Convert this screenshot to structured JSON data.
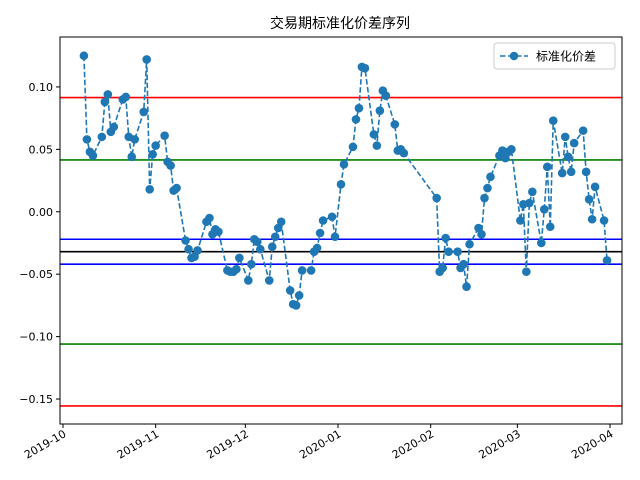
{
  "chart_data": {
    "type": "line",
    "title": "交易期标准化价差序列",
    "xlabel": "",
    "ylabel": "",
    "x_ticks": [
      "2019-10",
      "2019-11",
      "2019-12",
      "2020-01",
      "2020-02",
      "2020-03",
      "2020-04"
    ],
    "x_range": [
      "2019-09-30",
      "2020-04-05"
    ],
    "y_ticks": [
      0.1,
      0.05,
      0.0,
      -0.05,
      -0.1,
      -0.15
    ],
    "y_tick_labels": [
      "0.10",
      "0.05",
      "0.00",
      "−0.05",
      "−0.10",
      "−0.15"
    ],
    "ylim": [
      -0.17,
      0.14
    ],
    "grid": false,
    "legend_position": "top-right",
    "series": [
      {
        "name": "标准化价差",
        "color": "#1f77b4",
        "style": "dashed-with-circle-markers",
        "points": [
          [
            "2019-10-08",
            0.125
          ],
          [
            "2019-10-09",
            0.058
          ],
          [
            "2019-10-10",
            0.048
          ],
          [
            "2019-10-11",
            0.045
          ],
          [
            "2019-10-14",
            0.06
          ],
          [
            "2019-10-15",
            0.088
          ],
          [
            "2019-10-16",
            0.094
          ],
          [
            "2019-10-17",
            0.064
          ],
          [
            "2019-10-18",
            0.068
          ],
          [
            "2019-10-21",
            0.09
          ],
          [
            "2019-10-22",
            0.092
          ],
          [
            "2019-10-23",
            0.06
          ],
          [
            "2019-10-24",
            0.044
          ],
          [
            "2019-10-25",
            0.058
          ],
          [
            "2019-10-28",
            0.08
          ],
          [
            "2019-10-29",
            0.122
          ],
          [
            "2019-10-30",
            0.018
          ],
          [
            "2019-10-31",
            0.046
          ],
          [
            "2019-11-01",
            0.053
          ],
          [
            "2019-11-04",
            0.061
          ],
          [
            "2019-11-05",
            0.04
          ],
          [
            "2019-11-06",
            0.037
          ],
          [
            "2019-11-07",
            0.017
          ],
          [
            "2019-11-08",
            0.019
          ],
          [
            "2019-11-11",
            -0.023
          ],
          [
            "2019-11-12",
            -0.03
          ],
          [
            "2019-11-13",
            -0.037
          ],
          [
            "2019-11-14",
            -0.036
          ],
          [
            "2019-11-15",
            -0.031
          ],
          [
            "2019-11-18",
            -0.008
          ],
          [
            "2019-11-19",
            -0.005
          ],
          [
            "2019-11-20",
            -0.018
          ],
          [
            "2019-11-21",
            -0.014
          ],
          [
            "2019-11-22",
            -0.016
          ],
          [
            "2019-11-25",
            -0.047
          ],
          [
            "2019-11-26",
            -0.048
          ],
          [
            "2019-11-27",
            -0.048
          ],
          [
            "2019-11-28",
            -0.046
          ],
          [
            "2019-11-29",
            -0.037
          ],
          [
            "2019-12-02",
            -0.055
          ],
          [
            "2019-12-03",
            -0.042
          ],
          [
            "2019-12-04",
            -0.022
          ],
          [
            "2019-12-05",
            -0.024
          ],
          [
            "2019-12-06",
            -0.03
          ],
          [
            "2019-12-09",
            -0.055
          ],
          [
            "2019-12-10",
            -0.028
          ],
          [
            "2019-12-11",
            -0.02
          ],
          [
            "2019-12-12",
            -0.013
          ],
          [
            "2019-12-13",
            -0.008
          ],
          [
            "2019-12-16",
            -0.063
          ],
          [
            "2019-12-17",
            -0.074
          ],
          [
            "2019-12-18",
            -0.075
          ],
          [
            "2019-12-19",
            -0.067
          ],
          [
            "2019-12-20",
            -0.047
          ],
          [
            "2019-12-23",
            -0.047
          ],
          [
            "2019-12-24",
            -0.032
          ],
          [
            "2019-12-25",
            -0.029
          ],
          [
            "2019-12-26",
            -0.017
          ],
          [
            "2019-12-27",
            -0.007
          ],
          [
            "2019-12-30",
            -0.004
          ],
          [
            "2019-12-31",
            -0.02
          ],
          [
            "2020-01-02",
            0.022
          ],
          [
            "2020-01-03",
            0.038
          ],
          [
            "2020-01-06",
            0.052
          ],
          [
            "2020-01-07",
            0.074
          ],
          [
            "2020-01-08",
            0.083
          ],
          [
            "2020-01-09",
            0.116
          ],
          [
            "2020-01-10",
            0.115
          ],
          [
            "2020-01-13",
            0.062
          ],
          [
            "2020-01-14",
            0.053
          ],
          [
            "2020-01-15",
            0.081
          ],
          [
            "2020-01-16",
            0.097
          ],
          [
            "2020-01-17",
            0.093
          ],
          [
            "2020-01-20",
            0.07
          ],
          [
            "2020-01-21",
            0.049
          ],
          [
            "2020-01-22",
            0.05
          ],
          [
            "2020-01-23",
            0.047
          ],
          [
            "2020-02-03",
            0.011
          ],
          [
            "2020-02-04",
            -0.048
          ],
          [
            "2020-02-05",
            -0.045
          ],
          [
            "2020-02-06",
            -0.021
          ],
          [
            "2020-02-07",
            -0.032
          ],
          [
            "2020-02-10",
            -0.032
          ],
          [
            "2020-02-11",
            -0.045
          ],
          [
            "2020-02-12",
            -0.042
          ],
          [
            "2020-02-13",
            -0.06
          ],
          [
            "2020-02-14",
            -0.026
          ],
          [
            "2020-02-17",
            -0.013
          ],
          [
            "2020-02-18",
            -0.018
          ],
          [
            "2020-02-19",
            0.011
          ],
          [
            "2020-02-20",
            0.019
          ],
          [
            "2020-02-21",
            0.028
          ],
          [
            "2020-02-24",
            0.045
          ],
          [
            "2020-02-25",
            0.049
          ],
          [
            "2020-02-26",
            0.043
          ],
          [
            "2020-02-27",
            0.048
          ],
          [
            "2020-02-28",
            0.05
          ],
          [
            "2020-03-02",
            -0.007
          ],
          [
            "2020-03-03",
            0.006
          ],
          [
            "2020-03-04",
            -0.048
          ],
          [
            "2020-03-05",
            0.007
          ],
          [
            "2020-03-06",
            0.016
          ],
          [
            "2020-03-09",
            -0.025
          ],
          [
            "2020-03-10",
            0.002
          ],
          [
            "2020-03-11",
            0.036
          ],
          [
            "2020-03-12",
            -0.012
          ],
          [
            "2020-03-13",
            0.073
          ],
          [
            "2020-03-16",
            0.031
          ],
          [
            "2020-03-17",
            0.06
          ],
          [
            "2020-03-18",
            0.044
          ],
          [
            "2020-03-19",
            0.032
          ],
          [
            "2020-03-20",
            0.055
          ],
          [
            "2020-03-23",
            0.065
          ],
          [
            "2020-03-24",
            0.032
          ],
          [
            "2020-03-25",
            0.01
          ],
          [
            "2020-03-26",
            -0.006
          ],
          [
            "2020-03-27",
            0.02
          ],
          [
            "2020-03-30",
            -0.007
          ],
          [
            "2020-03-31",
            -0.039
          ]
        ]
      }
    ],
    "horizontal_lines": [
      {
        "y": 0.0915,
        "color": "#ff0000"
      },
      {
        "y": 0.0415,
        "color": "#008000"
      },
      {
        "y": -0.022,
        "color": "#0000ff"
      },
      {
        "y": -0.032,
        "color": "#000000"
      },
      {
        "y": -0.042,
        "color": "#0000ff"
      },
      {
        "y": -0.106,
        "color": "#008000"
      },
      {
        "y": -0.1555,
        "color": "#ff0000"
      }
    ]
  }
}
